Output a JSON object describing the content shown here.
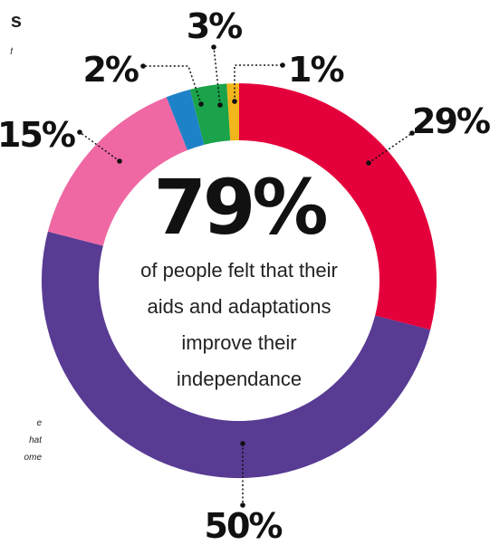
{
  "chart_data": {
    "type": "pie",
    "variant": "donut",
    "slices": [
      {
        "label": "29%",
        "value": 29,
        "color": "#e4003b"
      },
      {
        "label": "50%",
        "value": 50,
        "color": "#583b93"
      },
      {
        "label": "15%",
        "value": 15,
        "color": "#ef68a4"
      },
      {
        "label": "2%",
        "value": 2,
        "color": "#1e82c8"
      },
      {
        "label": "3%",
        "value": 3,
        "color": "#1aa34a"
      },
      {
        "label": "1%",
        "value": 1,
        "color": "#f2b61d"
      }
    ],
    "center": {
      "value": "79%",
      "lines": [
        "of people felt that their",
        "aids and adaptations",
        "improve their",
        "independance"
      ]
    }
  },
  "fragments": {
    "title": "s",
    "subtitle": "f",
    "note_lines": [
      "e",
      "hat",
      "ome"
    ]
  }
}
